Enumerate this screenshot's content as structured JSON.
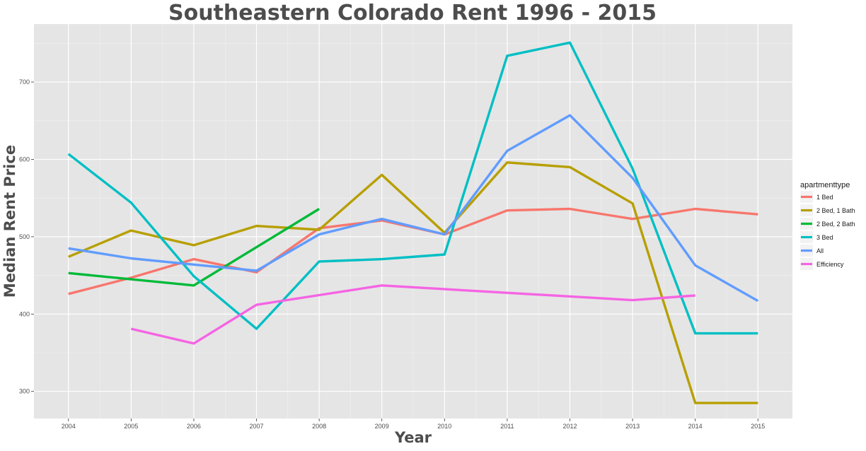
{
  "chart_data": {
    "type": "line",
    "title": "Southeastern Colorado Rent 1996 - 2015",
    "xlabel": "Year",
    "ylabel": "Median Rent Price",
    "x": [
      2004,
      2005,
      2006,
      2007,
      2008,
      2009,
      2010,
      2011,
      2012,
      2013,
      2014,
      2015
    ],
    "xlim": [
      2003.45,
      2015.55
    ],
    "ylim": [
      265,
      775
    ],
    "yticks": [
      300,
      400,
      500,
      600,
      700
    ],
    "grid": true,
    "legend": {
      "title": "apartmenttype",
      "position": "right"
    },
    "series": [
      {
        "name": "1 Bed",
        "color": "#F8766D",
        "values": [
          426,
          447,
          471,
          454,
          511,
          521,
          503,
          534,
          536,
          523,
          536,
          529
        ]
      },
      {
        "name": "2 Bed, 1 Bath",
        "color": "#B79F00",
        "values": [
          474,
          508,
          489,
          514,
          509,
          580,
          505,
          596,
          590,
          543,
          285,
          285
        ]
      },
      {
        "name": "2 Bed, 2 Bath",
        "color": "#00BA38",
        "values": [
          453,
          null,
          437,
          null,
          536,
          null,
          null,
          null,
          null,
          null,
          null,
          null
        ]
      },
      {
        "name": "3 Bed",
        "color": "#00BFC4",
        "values": [
          607,
          544,
          449,
          381,
          468,
          471,
          477,
          734,
          751,
          588,
          375,
          375
        ]
      },
      {
        "name": "All",
        "color": "#619CFF",
        "values": [
          485,
          472,
          464,
          456,
          503,
          523,
          503,
          611,
          657,
          576,
          463,
          417
        ]
      },
      {
        "name": "Efficiency",
        "color": "#F564E3",
        "values": [
          null,
          381,
          362,
          412,
          null,
          437,
          null,
          null,
          null,
          418,
          424,
          null
        ]
      }
    ]
  }
}
